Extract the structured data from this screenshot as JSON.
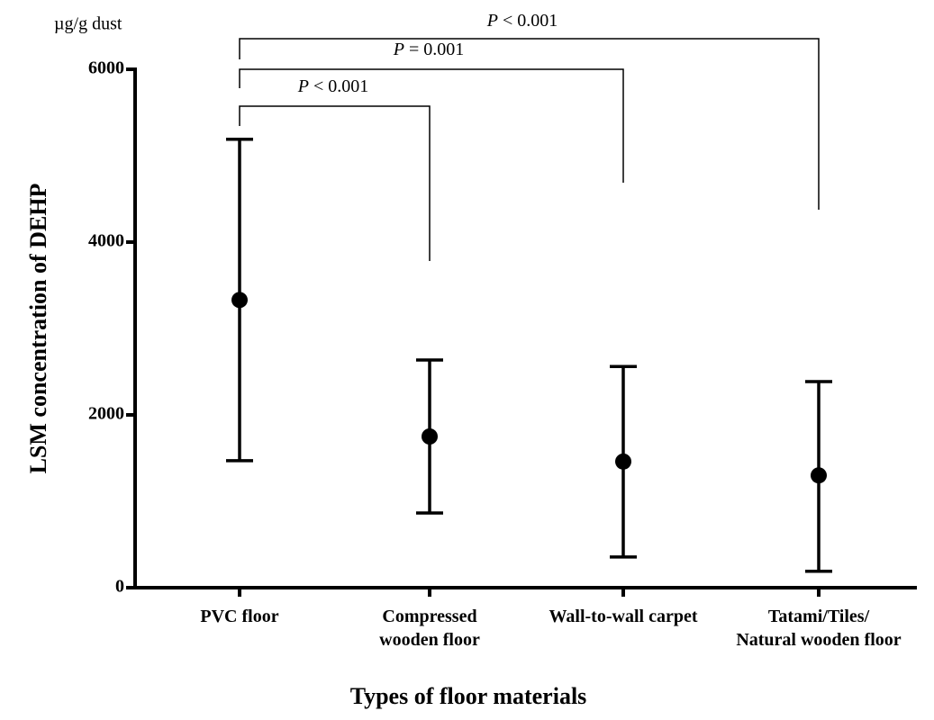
{
  "chart_data": {
    "type": "errorbar",
    "unit_label": "µg/g dust",
    "y_label": "LSM concentration of DEHP",
    "x_label": "Types of floor materials",
    "categories": [
      "PVC floor",
      "Compressed\nwooden floor",
      "Wall-to-wall carpet",
      "Tatami/Tiles/\nNatural wooden floor"
    ],
    "series": [
      {
        "color": "#000000",
        "values": [
          3330,
          1750,
          1460,
          1300
        ],
        "lower": [
          1470,
          865,
          355,
          190
        ],
        "upper": [
          5190,
          2635,
          2560,
          2385
        ]
      }
    ],
    "ylim": [
      0,
      6000
    ],
    "yticks": [
      0,
      2000,
      4000,
      6000
    ],
    "annotations": [
      {
        "symbol": "P",
        "text": "< 0.001",
        "from": 0,
        "to": 1
      },
      {
        "symbol": "P",
        "text": "= 0.001",
        "from": 0,
        "to": 2
      },
      {
        "symbol": "P",
        "text": "< 0.001",
        "from": 0,
        "to": 3
      }
    ]
  }
}
